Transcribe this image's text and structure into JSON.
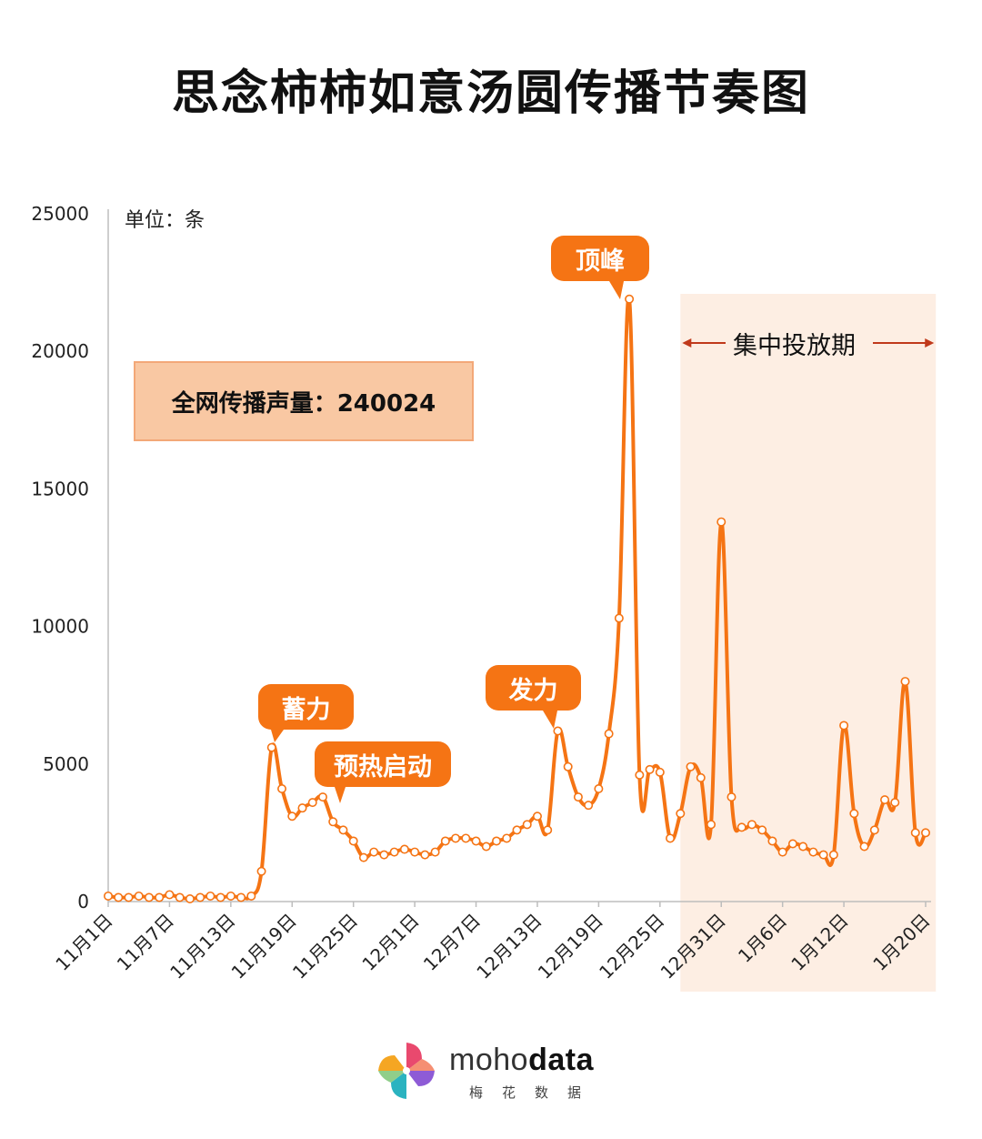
{
  "title": "思念柿柿如意汤圆传播节奏图",
  "unit_label": "单位：条",
  "total_label": "全网传播声量：240024",
  "callouts": {
    "xuli": "蓄力",
    "yure": "预热启动",
    "fali": "发力",
    "dingfeng": "顶峰"
  },
  "period": {
    "label": "集中投放期",
    "start_index": 56,
    "end_index": 81
  },
  "brand": {
    "name_light": "moho",
    "name_bold": "data",
    "sub": "梅花数据"
  },
  "colors": {
    "line": "#f57414",
    "accent": "#f57414",
    "period_fill": "#fdeee3",
    "box_fill": "#f9c8a3",
    "arrow": "#c0391b"
  },
  "chart_data": {
    "type": "line",
    "title": "思念柿柿如意汤圆传播节奏图",
    "xlabel": "",
    "ylabel": "单位：条",
    "ylim": [
      0,
      25000
    ],
    "yticks": [
      0,
      5000,
      10000,
      15000,
      20000,
      25000
    ],
    "xtick_labels": [
      "11月1日",
      "11月7日",
      "11月13日",
      "11月19日",
      "11月25日",
      "12月1日",
      "12月7日",
      "12月13日",
      "12月19日",
      "12月25日",
      "12月31日",
      "1月6日",
      "1月12日",
      "1月20日"
    ],
    "xtick_indices": [
      0,
      6,
      12,
      18,
      24,
      30,
      36,
      42,
      48,
      54,
      60,
      66,
      72,
      80
    ],
    "grid": false,
    "series": [
      {
        "values": [
          200,
          150,
          150,
          200,
          150,
          150,
          250,
          150,
          100,
          150,
          200,
          150,
          200,
          150,
          200,
          1100,
          5600,
          4100,
          3100,
          3400,
          3600,
          3800,
          2900,
          2600,
          2200,
          1600,
          1800,
          1700,
          1800,
          1900,
          1800,
          1700,
          1800,
          2200,
          2300,
          2300,
          2200,
          2000,
          2200,
          2300,
          2600,
          2800,
          3100,
          2600,
          6200,
          4900,
          3800,
          3500,
          4100,
          6100,
          10300,
          21900,
          4600,
          4800,
          4700,
          2300,
          3200,
          4900,
          4500,
          2800,
          13800,
          3800,
          2700,
          2800,
          2600,
          2200,
          1800,
          2100,
          2000,
          1800,
          1700,
          1700,
          6400,
          3200,
          2000,
          2600,
          3700,
          3600,
          8000,
          2500,
          2500
        ]
      }
    ]
  }
}
